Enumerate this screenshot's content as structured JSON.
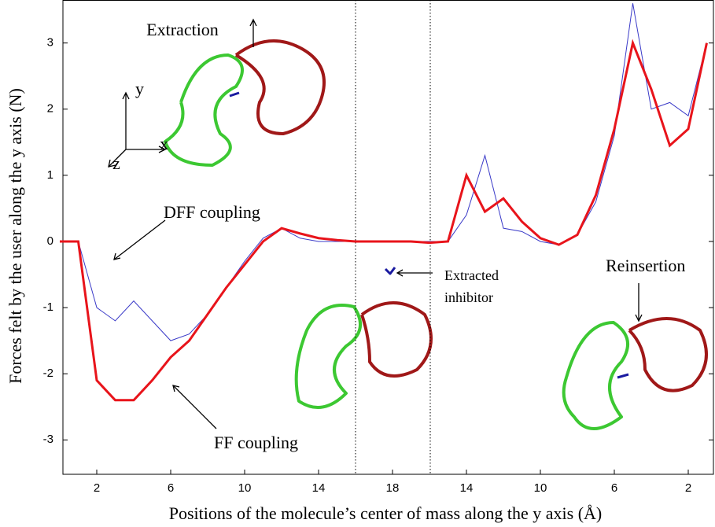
{
  "chart_data": {
    "type": "line",
    "x_label": "Positions of the molecule’s center of mass along the y axis (Å)",
    "y_label": "Forces felt by the user along the y axis (N)",
    "categories": [
      null,
      null,
      "2",
      null,
      null,
      null,
      "6",
      null,
      null,
      null,
      "10",
      null,
      null,
      null,
      "14",
      null,
      null,
      null,
      "18",
      null,
      null,
      null,
      "14",
      null,
      null,
      null,
      "10",
      null,
      null,
      null,
      "6",
      null,
      null,
      null,
      "2",
      null
    ],
    "series": [
      {
        "name": "FF coupling",
        "color": "#e8141b",
        "values": [
          0,
          0,
          -2.1,
          -2.4,
          -2.4,
          -2.1,
          -1.75,
          -1.5,
          -1.1,
          -0.7,
          -0.35,
          0,
          0.2,
          0.12,
          0.05,
          0.02,
          0,
          0,
          0,
          0,
          -0.02,
          0,
          1.0,
          0.45,
          0.65,
          0.3,
          0.05,
          -0.05,
          0.1,
          0.7,
          1.7,
          3.0,
          2.3,
          1.45,
          1.7,
          3.0
        ]
      },
      {
        "name": "DFF coupling",
        "color": "#3a3ac8",
        "values": [
          0,
          0,
          -1.0,
          -1.2,
          -0.9,
          -1.2,
          -1.5,
          -1.4,
          -1.1,
          -0.7,
          -0.3,
          0.05,
          0.2,
          0.05,
          0,
          0,
          0,
          0,
          0,
          0,
          0,
          0,
          0.4,
          1.3,
          0.2,
          0.15,
          0,
          -0.05,
          0.1,
          0.6,
          1.6,
          3.6,
          2.0,
          2.1,
          1.9,
          3.0
        ]
      }
    ],
    "ylim": [
      -3.52,
      3.65
    ],
    "yticks": [
      -3,
      -2,
      -1,
      0,
      1,
      2,
      3
    ],
    "annotations": {
      "extraction": "Extraction",
      "dff": "DFF coupling",
      "ff": "FF coupling",
      "inhibitor_1": "Extracted",
      "inhibitor_2": "inhibitor",
      "reinsertion": "Reinsertion",
      "axis_x": "x",
      "axis_y": "y",
      "axis_z": "z"
    }
  }
}
